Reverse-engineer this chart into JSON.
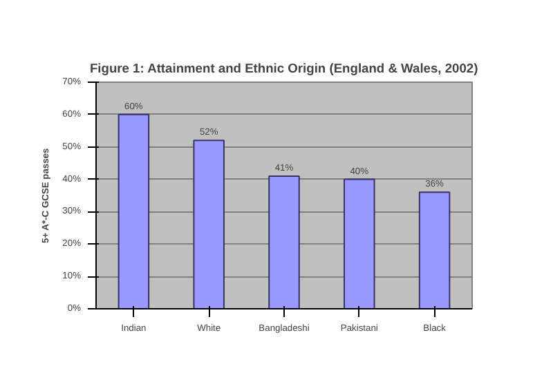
{
  "chart_data": {
    "type": "bar",
    "title": "Figure 1: Attainment and Ethnic Origin (England & Wales, 2002)",
    "ylabel": "5+ A*-C GCSE passes",
    "categories": [
      "Indian",
      "White",
      "Bangladeshi",
      "Pakistani",
      "Black"
    ],
    "values": [
      60,
      52,
      41,
      40,
      36
    ],
    "value_labels": [
      "60%",
      "52%",
      "41%",
      "40%",
      "36%"
    ],
    "color": "#9999ff",
    "ylim": [
      0,
      70
    ],
    "yticks": [
      {
        "value": 0,
        "label": "0%"
      },
      {
        "value": 10,
        "label": "10%"
      },
      {
        "value": 20,
        "label": "20%"
      },
      {
        "value": 30,
        "label": "30%"
      },
      {
        "value": 40,
        "label": "40%"
      },
      {
        "value": 50,
        "label": "50%"
      },
      {
        "value": 60,
        "label": "60%"
      },
      {
        "value": 70,
        "label": "70%"
      }
    ],
    "grid": "y"
  }
}
